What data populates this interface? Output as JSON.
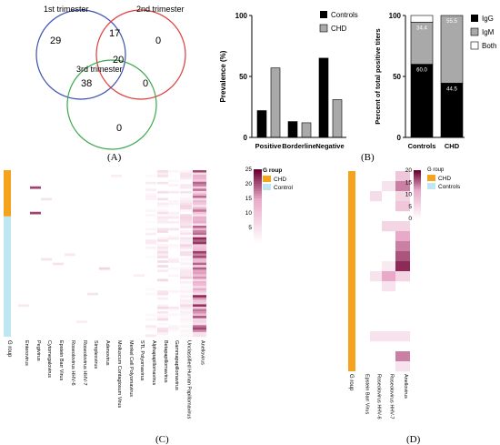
{
  "panels": {
    "a": "(A)",
    "b": "(B)",
    "c": "(C)",
    "d": "(D)"
  },
  "chart_data": [
    {
      "type": "venn",
      "panel": "A",
      "sets": [
        "1st trimester",
        "2nd trimester",
        "3rd trimester"
      ],
      "set_colors": [
        "#3a4fb0",
        "#e03a3a",
        "#3aa84a"
      ],
      "regions": {
        "only_1": 29,
        "only_2": 0,
        "only_3": 0,
        "one_two": 17,
        "one_three": 38,
        "two_three": 0,
        "all": 20
      }
    },
    {
      "type": "bar",
      "panel": "B-left",
      "categories": [
        "Positive",
        "Borderline",
        "Negative"
      ],
      "series": [
        {
          "name": "Controls",
          "color": "#000000",
          "values": [
            22,
            13,
            65
          ]
        },
        {
          "name": "CHD",
          "color": "#a9a9a9",
          "values": [
            57,
            12,
            31
          ]
        }
      ],
      "ylabel": "Prevalence (%)",
      "ylim": [
        0,
        100
      ],
      "yticks": [
        0,
        50,
        100
      ],
      "legend": "top-right"
    },
    {
      "type": "bar",
      "subtype": "stacked-100",
      "panel": "B-right",
      "categories": [
        "Controls",
        "CHD"
      ],
      "series": [
        {
          "name": "IgG",
          "color": "#000000",
          "values": [
            60.0,
            44.5
          ]
        },
        {
          "name": "IgM",
          "color": "#a9a9a9",
          "values": [
            34.4,
            55.5
          ]
        },
        {
          "name": "Both",
          "color": "#ffffff",
          "values": [
            5.6,
            0
          ]
        }
      ],
      "data_labels": [
        "60.0",
        "44.5",
        "34.4",
        "55.5"
      ],
      "ylabel": "Percent of total positive titers",
      "ylim": [
        0,
        100
      ],
      "yticks": [
        0,
        50,
        100
      ],
      "legend": "right"
    },
    {
      "type": "heatmap",
      "panel": "C",
      "columns": [
        "Enterovirus",
        "Pegivirus",
        "Cytomegalovirus",
        "Epstein Barr Virus",
        "Roseolovirus HHV-6",
        "Roseolovirus HHV-7",
        "Simplexvirus",
        "Adenovirus",
        "Molluscum Contagiosum Virus",
        "Merkel Cell Polyomavirus",
        "STL Polyomavirus",
        "Alphapapillomavirus",
        "Betapapillomavirus",
        "Gammapapillomavirus",
        "Unclassified Human Papillomavirus",
        "Anellovirus"
      ],
      "row_annotation_title": "G roup",
      "groups": [
        {
          "name": "CHD",
          "color": "#f5a21c",
          "rows": 20
        },
        {
          "name": "Control",
          "color": "#bfe7f3",
          "rows": 52
        }
      ],
      "colorbar": {
        "min": 0,
        "max": 25,
        "ticks": [
          5,
          10,
          15,
          20,
          25
        ]
      },
      "rows": 72
    },
    {
      "type": "heatmap",
      "panel": "D",
      "columns": [
        "Epstein Barr Virus",
        "Roseolovirus HHV-6",
        "Roseolovirus HHV-7",
        "Anellovirus"
      ],
      "row_annotation_title": "G roup",
      "groups": [
        {
          "name": "CHD",
          "color": "#f5a21c",
          "rows": 20
        },
        {
          "name": "Controls",
          "color": "#bfe7f3",
          "rows": 0
        }
      ],
      "colorbar": {
        "min": 0,
        "max": 20,
        "ticks": [
          0,
          5,
          10,
          15,
          20
        ]
      },
      "rows": 20
    }
  ]
}
